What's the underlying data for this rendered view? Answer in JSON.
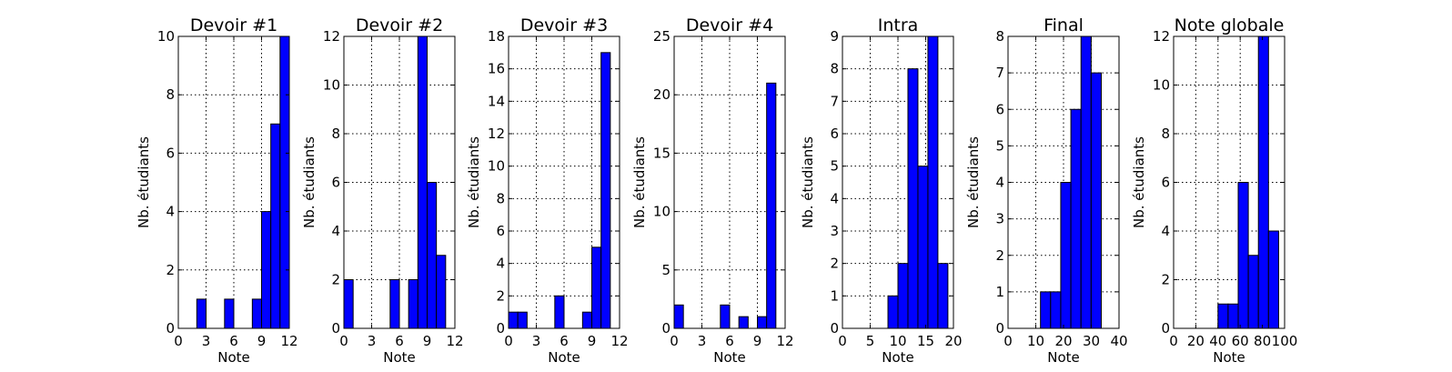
{
  "chart_data": [
    {
      "type": "bar",
      "title": "Devoir #1",
      "xlabel": "Note",
      "ylabel": "Nb. étudiants",
      "xlim": [
        0,
        12
      ],
      "ylim": [
        0,
        10
      ],
      "xticks": [
        0,
        3,
        6,
        9,
        12
      ],
      "yticks": [
        0,
        2,
        4,
        6,
        8,
        10
      ],
      "grid": true,
      "bin_width": 1,
      "bins": [
        {
          "x": 2,
          "value": 1
        },
        {
          "x": 5,
          "value": 1
        },
        {
          "x": 8,
          "value": 1
        },
        {
          "x": 9,
          "value": 4
        },
        {
          "x": 10,
          "value": 7
        },
        {
          "x": 11,
          "value": 10
        }
      ]
    },
    {
      "type": "bar",
      "title": "Devoir #2",
      "xlabel": "Note",
      "ylabel": "Nb. étudiants",
      "xlim": [
        0,
        12
      ],
      "ylim": [
        0,
        12
      ],
      "xticks": [
        0,
        3,
        6,
        9,
        12
      ],
      "yticks": [
        0,
        2,
        4,
        6,
        8,
        10,
        12
      ],
      "grid": true,
      "bin_width": 1,
      "bins": [
        {
          "x": 0,
          "value": 2
        },
        {
          "x": 5,
          "value": 2
        },
        {
          "x": 7,
          "value": 2
        },
        {
          "x": 8,
          "value": 12
        },
        {
          "x": 9,
          "value": 6
        },
        {
          "x": 10,
          "value": 3
        }
      ]
    },
    {
      "type": "bar",
      "title": "Devoir #3",
      "xlabel": "Note",
      "ylabel": "Nb. étudiants",
      "xlim": [
        0,
        12
      ],
      "ylim": [
        0,
        18
      ],
      "xticks": [
        0,
        3,
        6,
        9,
        12
      ],
      "yticks": [
        0,
        2,
        4,
        6,
        8,
        10,
        12,
        14,
        16,
        18
      ],
      "grid": true,
      "bin_width": 1,
      "bins": [
        {
          "x": 0,
          "value": 1
        },
        {
          "x": 1,
          "value": 1
        },
        {
          "x": 5,
          "value": 2
        },
        {
          "x": 8,
          "value": 1
        },
        {
          "x": 9,
          "value": 5
        },
        {
          "x": 10,
          "value": 17
        }
      ]
    },
    {
      "type": "bar",
      "title": "Devoir #4",
      "xlabel": "Note",
      "ylabel": "Nb. étudiants",
      "xlim": [
        0,
        12
      ],
      "ylim": [
        0,
        25
      ],
      "xticks": [
        0,
        3,
        6,
        9,
        12
      ],
      "yticks": [
        0,
        5,
        10,
        15,
        20,
        25
      ],
      "grid": true,
      "bin_width": 1,
      "bins": [
        {
          "x": 0,
          "value": 2
        },
        {
          "x": 5,
          "value": 2
        },
        {
          "x": 7,
          "value": 1
        },
        {
          "x": 9,
          "value": 1
        },
        {
          "x": 10,
          "value": 21
        }
      ]
    },
    {
      "type": "bar",
      "title": "Intra",
      "xlabel": "Note",
      "ylabel": "Nb. étudiants",
      "xlim": [
        0,
        20
      ],
      "ylim": [
        0,
        9
      ],
      "xticks": [
        0,
        5,
        10,
        15,
        20
      ],
      "yticks": [
        0,
        1,
        2,
        3,
        4,
        5,
        6,
        7,
        8,
        9
      ],
      "grid": true,
      "bin_width": 1.8,
      "bins": [
        {
          "x": 8.2,
          "value": 1
        },
        {
          "x": 10.0,
          "value": 2
        },
        {
          "x": 11.8,
          "value": 8
        },
        {
          "x": 13.6,
          "value": 5
        },
        {
          "x": 15.4,
          "value": 9
        },
        {
          "x": 17.2,
          "value": 2
        }
      ]
    },
    {
      "type": "bar",
      "title": "Final",
      "xlabel": "Note",
      "ylabel": "Nb. étudiants",
      "xlim": [
        0,
        40
      ],
      "ylim": [
        0,
        8
      ],
      "xticks": [
        0,
        10,
        20,
        30,
        40
      ],
      "yticks": [
        0,
        1,
        2,
        3,
        4,
        5,
        6,
        7,
        8
      ],
      "grid": true,
      "bin_width": 3.65,
      "bins": [
        {
          "x": 11.7,
          "value": 1
        },
        {
          "x": 15.35,
          "value": 1
        },
        {
          "x": 19.0,
          "value": 4
        },
        {
          "x": 22.65,
          "value": 6
        },
        {
          "x": 26.3,
          "value": 8
        },
        {
          "x": 29.95,
          "value": 7
        }
      ]
    },
    {
      "type": "bar",
      "title": "Note globale",
      "xlabel": "Note",
      "ylabel": "Nb. étudiants",
      "xlim": [
        0,
        100
      ],
      "ylim": [
        0,
        12
      ],
      "xticks": [
        0,
        20,
        40,
        60,
        80,
        100
      ],
      "yticks": [
        0,
        2,
        4,
        6,
        8,
        10,
        12
      ],
      "grid": true,
      "bin_width": 9.1,
      "bins": [
        {
          "x": 40.0,
          "value": 1
        },
        {
          "x": 49.1,
          "value": 1
        },
        {
          "x": 58.2,
          "value": 6
        },
        {
          "x": 67.3,
          "value": 3
        },
        {
          "x": 76.4,
          "value": 12
        },
        {
          "x": 85.5,
          "value": 4
        }
      ]
    }
  ]
}
